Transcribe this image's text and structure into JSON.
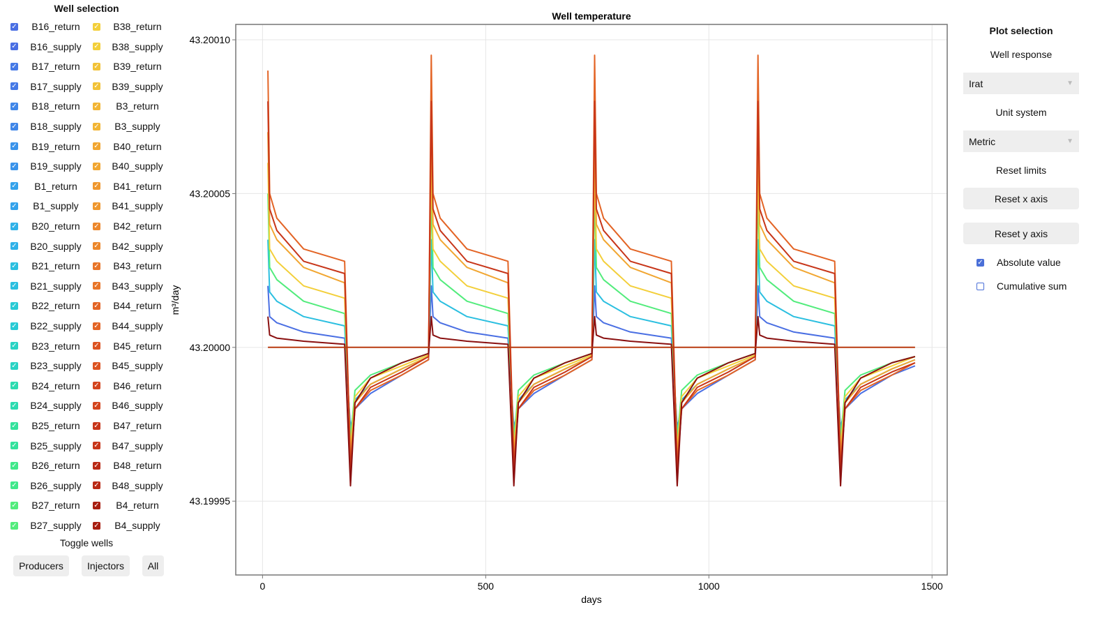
{
  "left_panel": {
    "title": "Well selection",
    "toggle_title": "Toggle wells",
    "buttons": {
      "producers": "Producers",
      "injectors": "Injectors",
      "all": "All"
    },
    "column1": [
      {
        "name": "B16_return",
        "color": "#4a6fe3",
        "checked": true
      },
      {
        "name": "B16_supply",
        "color": "#4a6fe3",
        "checked": true
      },
      {
        "name": "B17_return",
        "color": "#4579e6",
        "checked": true
      },
      {
        "name": "B17_supply",
        "color": "#4579e6",
        "checked": true
      },
      {
        "name": "B18_return",
        "color": "#3f86e8",
        "checked": true
      },
      {
        "name": "B18_supply",
        "color": "#3f86e8",
        "checked": true
      },
      {
        "name": "B19_return",
        "color": "#3a93ea",
        "checked": true
      },
      {
        "name": "B19_supply",
        "color": "#3a93ea",
        "checked": true
      },
      {
        "name": "B1_return",
        "color": "#34a2eb",
        "checked": true
      },
      {
        "name": "B1_supply",
        "color": "#34a2eb",
        "checked": true
      },
      {
        "name": "B20_return",
        "color": "#2fb1e8",
        "checked": true
      },
      {
        "name": "B20_supply",
        "color": "#2fb1e8",
        "checked": true
      },
      {
        "name": "B21_return",
        "color": "#2bbfe0",
        "checked": true
      },
      {
        "name": "B21_supply",
        "color": "#2bbfe0",
        "checked": true
      },
      {
        "name": "B22_return",
        "color": "#28cad5",
        "checked": true
      },
      {
        "name": "B22_supply",
        "color": "#28cad5",
        "checked": true
      },
      {
        "name": "B23_return",
        "color": "#29d3c4",
        "checked": true
      },
      {
        "name": "B23_supply",
        "color": "#29d3c4",
        "checked": true
      },
      {
        "name": "B24_return",
        "color": "#2cdbb0",
        "checked": true
      },
      {
        "name": "B24_supply",
        "color": "#2cdbb0",
        "checked": true
      },
      {
        "name": "B25_return",
        "color": "#33e29c",
        "checked": true
      },
      {
        "name": "B25_supply",
        "color": "#33e29c",
        "checked": true
      },
      {
        "name": "B26_return",
        "color": "#40e88a",
        "checked": true
      },
      {
        "name": "B26_supply",
        "color": "#40e88a",
        "checked": true
      },
      {
        "name": "B27_return",
        "color": "#52ec7c",
        "checked": true
      },
      {
        "name": "B27_supply",
        "color": "#52ec7c",
        "checked": true
      }
    ],
    "column2": [
      {
        "name": "B38_return",
        "color": "#f3cf3a",
        "checked": true
      },
      {
        "name": "B38_supply",
        "color": "#f3cf3a",
        "checked": true
      },
      {
        "name": "B39_return",
        "color": "#f2c237",
        "checked": true
      },
      {
        "name": "B39_supply",
        "color": "#f2c237",
        "checked": true
      },
      {
        "name": "B3_return",
        "color": "#f2b534",
        "checked": true
      },
      {
        "name": "B3_supply",
        "color": "#f2b534",
        "checked": true
      },
      {
        "name": "B40_return",
        "color": "#f1a631",
        "checked": true
      },
      {
        "name": "B40_supply",
        "color": "#f1a631",
        "checked": true
      },
      {
        "name": "B41_return",
        "color": "#ef972e",
        "checked": true
      },
      {
        "name": "B41_supply",
        "color": "#ef972e",
        "checked": true
      },
      {
        "name": "B42_return",
        "color": "#ec872b",
        "checked": true
      },
      {
        "name": "B42_supply",
        "color": "#ec872b",
        "checked": true
      },
      {
        "name": "B43_return",
        "color": "#e87528",
        "checked": true
      },
      {
        "name": "B43_supply",
        "color": "#e87528",
        "checked": true
      },
      {
        "name": "B44_return",
        "color": "#e36425",
        "checked": true
      },
      {
        "name": "B44_supply",
        "color": "#e36425",
        "checked": true
      },
      {
        "name": "B45_return",
        "color": "#dc5321",
        "checked": true
      },
      {
        "name": "B45_supply",
        "color": "#dc5321",
        "checked": true
      },
      {
        "name": "B46_return",
        "color": "#d3441d",
        "checked": true
      },
      {
        "name": "B46_supply",
        "color": "#d3441d",
        "checked": true
      },
      {
        "name": "B47_return",
        "color": "#c73519",
        "checked": true
      },
      {
        "name": "B47_supply",
        "color": "#c73519",
        "checked": true
      },
      {
        "name": "B48_return",
        "color": "#b92915",
        "checked": true
      },
      {
        "name": "B48_supply",
        "color": "#b92915",
        "checked": true
      },
      {
        "name": "B4_return",
        "color": "#a81e10",
        "checked": true
      },
      {
        "name": "B4_supply",
        "color": "#a81e10",
        "checked": true
      }
    ]
  },
  "right_panel": {
    "title": "Plot selection",
    "well_response_label": "Well response",
    "well_response_value": "Irat",
    "unit_system_label": "Unit system",
    "unit_system_value": "Metric",
    "reset_limits_label": "Reset limits",
    "reset_x": "Reset x axis",
    "reset_y": "Reset y axis",
    "absolute_value": {
      "label": "Absolute value",
      "checked": true
    },
    "cumulative_sum": {
      "label": "Cumulative sum",
      "checked": false
    },
    "accent": "#4a6fd8"
  },
  "chart_data": {
    "type": "line",
    "title": "Well temperature",
    "xlabel": "days",
    "ylabel": "m³/day",
    "xlim": [
      -60,
      1534
    ],
    "ylim": [
      43.199926,
      43.200105
    ],
    "xticks": [
      0,
      500,
      1000,
      1500
    ],
    "xtick_labels": [
      "0",
      "500",
      "1000",
      "1500"
    ],
    "yticks": [
      43.19995,
      43.2,
      43.20005,
      43.2001
    ],
    "ytick_labels": [
      "43.19995",
      "43.20000",
      "43.20005",
      "43.20010"
    ],
    "grid": true,
    "x": [
      12,
      16,
      32,
      92,
      184,
      197,
      207,
      242,
      312,
      372,
      378,
      382,
      398,
      458,
      550,
      563,
      573,
      608,
      678,
      738,
      744,
      748,
      764,
      824,
      916,
      929,
      939,
      974,
      1044,
      1104,
      1110,
      1114,
      1130,
      1190,
      1282,
      1295,
      1305,
      1340,
      1410,
      1462
    ],
    "series": [
      {
        "color": "#4a6fe3",
        "values": [
          43.20002,
          43.20001,
          43.200008,
          43.200005,
          43.200003,
          43.199974,
          43.19998,
          43.199985,
          43.199991,
          43.199996,
          43.20002,
          43.20001,
          43.200008,
          43.200005,
          43.200003,
          43.199974,
          43.19998,
          43.199985,
          43.199991,
          43.199996,
          43.20002,
          43.20001,
          43.200008,
          43.200005,
          43.200003,
          43.199974,
          43.19998,
          43.199985,
          43.199991,
          43.199996,
          43.20002,
          43.20001,
          43.200008,
          43.200005,
          43.200003,
          43.199974,
          43.19998,
          43.199985,
          43.199991,
          43.199994
        ]
      },
      {
        "color": "#2bbfe0",
        "values": [
          43.200035,
          43.200018,
          43.200015,
          43.20001,
          43.200007,
          43.199972,
          43.199983,
          43.199988,
          43.199993,
          43.199997,
          43.200035,
          43.200018,
          43.200015,
          43.20001,
          43.200007,
          43.199972,
          43.199983,
          43.199988,
          43.199993,
          43.199997,
          43.200035,
          43.200018,
          43.200015,
          43.20001,
          43.200007,
          43.199972,
          43.199983,
          43.199988,
          43.199993,
          43.199997,
          43.200035,
          43.200018,
          43.200015,
          43.20001,
          43.200007,
          43.199972,
          43.199983,
          43.199988,
          43.199993,
          43.199996
        ]
      },
      {
        "color": "#52ec7c",
        "values": [
          43.20005,
          43.200026,
          43.200022,
          43.200015,
          43.200011,
          43.19997,
          43.199986,
          43.199991,
          43.199995,
          43.199998,
          43.20005,
          43.200026,
          43.200022,
          43.200015,
          43.200011,
          43.19997,
          43.199986,
          43.199991,
          43.199995,
          43.199998,
          43.20005,
          43.200026,
          43.200022,
          43.200015,
          43.200011,
          43.19997,
          43.199986,
          43.199991,
          43.199995,
          43.199998,
          43.20005,
          43.200026,
          43.200022,
          43.200015,
          43.200011,
          43.19997,
          43.199986,
          43.199991,
          43.199995,
          43.199997
        ]
      },
      {
        "color": "#f3cf3a",
        "values": [
          43.20006,
          43.200032,
          43.200028,
          43.20002,
          43.200016,
          43.199967,
          43.199984,
          43.19999,
          43.199994,
          43.1999975,
          43.20006,
          43.200032,
          43.200028,
          43.20002,
          43.200016,
          43.199967,
          43.199984,
          43.19999,
          43.199994,
          43.1999975,
          43.20006,
          43.200032,
          43.200028,
          43.20002,
          43.200016,
          43.199967,
          43.199984,
          43.19999,
          43.199994,
          43.1999975,
          43.20006,
          43.200032,
          43.200028,
          43.20002,
          43.200016,
          43.199967,
          43.199984,
          43.19999,
          43.199994,
          43.199997
        ]
      },
      {
        "color": "#f1a631",
        "values": [
          43.20007,
          43.20004,
          43.200035,
          43.200026,
          43.200021,
          43.199965,
          43.199982,
          43.199988,
          43.199993,
          43.199997,
          43.20007,
          43.20004,
          43.200035,
          43.200026,
          43.200021,
          43.199965,
          43.199982,
          43.199988,
          43.199993,
          43.199997,
          43.20007,
          43.20004,
          43.200035,
          43.200026,
          43.200021,
          43.199965,
          43.199982,
          43.199988,
          43.199993,
          43.199997,
          43.20007,
          43.20004,
          43.200035,
          43.200026,
          43.200021,
          43.199965,
          43.199982,
          43.199988,
          43.199993,
          43.199996
        ]
      },
      {
        "color": "#e36425",
        "values": [
          43.20009,
          43.20005,
          43.200042,
          43.200032,
          43.200028,
          43.199962,
          43.19998,
          43.199986,
          43.199991,
          43.199996,
          43.200095,
          43.20005,
          43.200042,
          43.200032,
          43.200028,
          43.199962,
          43.19998,
          43.199986,
          43.199991,
          43.199996,
          43.200095,
          43.20005,
          43.200042,
          43.200032,
          43.200028,
          43.199962,
          43.19998,
          43.199986,
          43.199991,
          43.199996,
          43.200095,
          43.20005,
          43.200042,
          43.200032,
          43.200028,
          43.199962,
          43.19998,
          43.199986,
          43.199991,
          43.199995
        ]
      },
      {
        "color": "#c73519",
        "values": [
          43.20008,
          43.200045,
          43.200038,
          43.200028,
          43.200024,
          43.19996,
          43.19998,
          43.199987,
          43.199992,
          43.199997,
          43.20008,
          43.200045,
          43.200038,
          43.200028,
          43.200024,
          43.19996,
          43.19998,
          43.199987,
          43.199992,
          43.199997,
          43.20008,
          43.200045,
          43.200038,
          43.200028,
          43.200024,
          43.19996,
          43.19998,
          43.199987,
          43.199992,
          43.199997,
          43.20008,
          43.200045,
          43.200038,
          43.200028,
          43.200024,
          43.19996,
          43.19998,
          43.199987,
          43.199992,
          43.199995
        ]
      },
      {
        "color": "#8a1010",
        "values": [
          43.20001,
          43.200004,
          43.200003,
          43.200002,
          43.200001,
          43.199955,
          43.199982,
          43.19999,
          43.199995,
          43.199998,
          43.20001,
          43.200004,
          43.200003,
          43.200002,
          43.200001,
          43.199955,
          43.199982,
          43.19999,
          43.199995,
          43.199998,
          43.20001,
          43.200004,
          43.200003,
          43.200002,
          43.200001,
          43.199955,
          43.199982,
          43.19999,
          43.199995,
          43.199998,
          43.20001,
          43.200004,
          43.200003,
          43.200002,
          43.200001,
          43.199955,
          43.199982,
          43.19999,
          43.199995,
          43.199997
        ]
      },
      {
        "color": "#b93a10",
        "values": [
          43.2,
          43.2,
          43.2,
          43.2,
          43.2,
          43.2,
          43.2,
          43.2,
          43.2,
          43.2,
          43.2,
          43.2,
          43.2,
          43.2,
          43.2,
          43.2,
          43.2,
          43.2,
          43.2,
          43.2,
          43.2,
          43.2,
          43.2,
          43.2,
          43.2,
          43.2,
          43.2,
          43.2,
          43.2,
          43.2,
          43.2,
          43.2,
          43.2,
          43.2,
          43.2,
          43.2,
          43.2,
          43.2,
          43.2,
          43.2
        ]
      }
    ]
  }
}
